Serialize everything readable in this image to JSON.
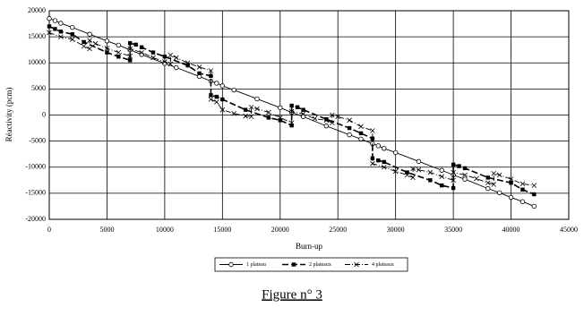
{
  "chart_data": {
    "type": "line",
    "caption": "Figure n° 3",
    "x_label": "Burn-up",
    "y_label": "Réactivity (pcm)",
    "xlim": [
      0,
      45000
    ],
    "xticks": [
      0,
      5000,
      10000,
      15000,
      20000,
      25000,
      30000,
      35000,
      40000,
      45000
    ],
    "ylim": [
      -20000,
      20000
    ],
    "yticks": [
      -20000,
      -15000,
      -10000,
      -5000,
      0,
      5000,
      10000,
      15000,
      20000
    ],
    "grid": true,
    "legend": "bottom",
    "series": [
      {
        "name": "1 plateau",
        "color": "#000000",
        "marker": "circle",
        "dash": "solid",
        "x": [
          0,
          500,
          1000,
          2000,
          3500,
          5000,
          6000,
          7000,
          8000,
          10000,
          11000,
          13000,
          14000,
          14500,
          15000,
          16000,
          18000,
          20000,
          21000,
          22000,
          24000,
          26000,
          27000,
          28000,
          28500,
          29000,
          30000,
          32000,
          34000,
          35000,
          36000,
          38000,
          39000,
          40000,
          41000,
          42000
        ],
        "values": [
          18500,
          18100,
          17600,
          16800,
          15500,
          14200,
          13400,
          12500,
          11600,
          9900,
          9100,
          7400,
          6500,
          6100,
          5600,
          4800,
          3100,
          1400,
          500,
          -300,
          -2100,
          -3800,
          -4600,
          -5500,
          -5900,
          -6400,
          -7200,
          -8900,
          -10600,
          -11500,
          -12300,
          -14100,
          -14900,
          -15800,
          -16600,
          -17500
        ]
      },
      {
        "name": "2 plateaux",
        "color": "#000000",
        "marker": "square",
        "dash": "long",
        "x": [
          0,
          500,
          1000,
          2000,
          3000,
          5000,
          6000,
          7000,
          7000,
          7500,
          8000,
          9000,
          10000,
          12000,
          13000,
          14000,
          14000,
          14500,
          15000,
          17000,
          19000,
          20000,
          21000,
          21000,
          21500,
          22000,
          24000,
          26000,
          27000,
          28000,
          28000,
          28500,
          29000,
          31000,
          33000,
          34000,
          35000,
          35000,
          35500,
          36000,
          38000,
          40000,
          41000,
          42000
        ],
        "values": [
          17000,
          16500,
          16000,
          15500,
          14000,
          12000,
          11200,
          10500,
          13800,
          13500,
          13000,
          12000,
          11200,
          9500,
          8000,
          7500,
          3800,
          3500,
          3000,
          1000,
          -500,
          -1000,
          -2000,
          1800,
          1500,
          1000,
          -800,
          -2500,
          -3500,
          -4500,
          -8300,
          -8700,
          -9000,
          -11000,
          -12500,
          -13500,
          -14000,
          -9500,
          -9800,
          -10200,
          -12000,
          -13000,
          -14300,
          -15200
        ]
      },
      {
        "name": "4 plateaux",
        "color": "#000000",
        "marker": "x",
        "dash": "dashdot",
        "x": [
          0,
          1000,
          2000,
          3000,
          3500,
          3500,
          4000,
          5000,
          6000,
          7000,
          7000,
          8000,
          9000,
          10000,
          10500,
          10500,
          11000,
          12000,
          13000,
          14000,
          14000,
          14500,
          15000,
          16000,
          17000,
          17500,
          17500,
          18000,
          19000,
          20000,
          21000,
          21000,
          22000,
          23000,
          24000,
          24500,
          24500,
          25000,
          26000,
          27000,
          28000,
          28000,
          29000,
          30000,
          31000,
          31500,
          31500,
          32000,
          33000,
          34000,
          35000,
          35000,
          36000,
          37000,
          38000,
          38500,
          38500,
          39000,
          40000,
          41000,
          42000
        ],
        "values": [
          15800,
          15000,
          14500,
          13200,
          12700,
          14300,
          13700,
          12800,
          12000,
          11300,
          12700,
          12000,
          11000,
          10200,
          9800,
          11500,
          11000,
          10000,
          9200,
          8500,
          3000,
          2500,
          1000,
          300,
          -200,
          -300,
          1500,
          1200,
          500,
          -500,
          -1500,
          700,
          200,
          -700,
          -1000,
          -1500,
          0,
          -300,
          -1000,
          -2200,
          -3000,
          -9300,
          -10000,
          -10800,
          -11500,
          -12000,
          -10300,
          -10500,
          -11000,
          -11800,
          -12500,
          -11000,
          -11500,
          -12200,
          -13000,
          -13300,
          -11200,
          -11500,
          -12300,
          -13200,
          -13500
        ]
      }
    ]
  }
}
